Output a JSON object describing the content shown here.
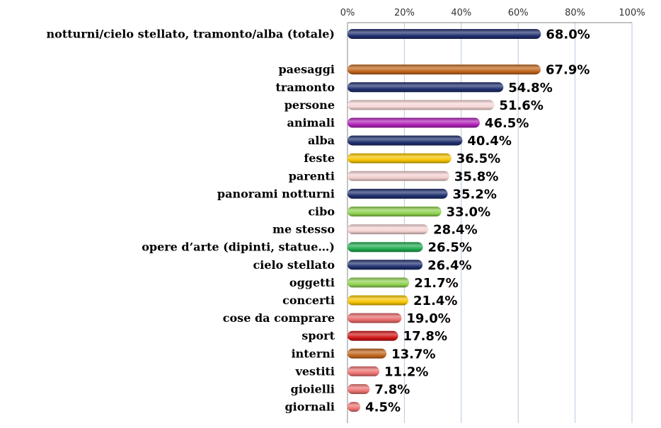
{
  "chart_data": {
    "type": "bar",
    "orientation": "horizontal",
    "title": "",
    "xlabel": "",
    "ylabel": "",
    "xlim": [
      0,
      100
    ],
    "ticks": [
      "0%",
      "20%",
      "40%",
      "60%",
      "80%",
      "100%"
    ],
    "tick_values": [
      0,
      20,
      40,
      60,
      80,
      100
    ],
    "grid": true,
    "categories": [
      "notturni/cielo stellato, tramonto/alba (totale)",
      "",
      "paesaggi",
      "tramonto",
      "persone",
      "animali",
      "alba",
      "feste",
      "parenti",
      "panorami notturni",
      "cibo",
      "me stesso",
      "opere d’arte (dipinti, statue…)",
      "cielo stellato",
      "oggetti",
      "concerti",
      "cose da comprare",
      "sport",
      "interni",
      "vestiti",
      "gioielli",
      "giornali"
    ],
    "values": [
      68.0,
      null,
      67.9,
      54.8,
      51.6,
      46.5,
      40.4,
      36.5,
      35.8,
      35.2,
      33.0,
      28.4,
      26.5,
      26.4,
      21.7,
      21.4,
      19.0,
      17.8,
      13.7,
      11.2,
      7.8,
      4.5
    ],
    "value_labels": [
      "68.0%",
      "",
      "67.9%",
      "54.8%",
      "51.6%",
      "46.5%",
      "40.4%",
      "36.5%",
      "35.8%",
      "35.2%",
      "33.0%",
      "28.4%",
      "26.5%",
      "26.4%",
      "21.7%",
      "21.4%",
      "19.0%",
      "17.8%",
      "13.7%",
      "11.2%",
      "7.8%",
      "4.5%"
    ],
    "colors": [
      "#1f2f6e",
      "",
      "#c0651a",
      "#1f2f6e",
      "#f7d6d6",
      "#b020b8",
      "#1f2f6e",
      "#f5c400",
      "#f2cfcf",
      "#1f2f6e",
      "#8fd14f",
      "#f5d3d3",
      "#1faa4e",
      "#1f2f6e",
      "#8fd14f",
      "#f5c400",
      "#e86a6a",
      "#d01515",
      "#c0651a",
      "#ec7272",
      "#ec7272",
      "#ec7272"
    ]
  }
}
